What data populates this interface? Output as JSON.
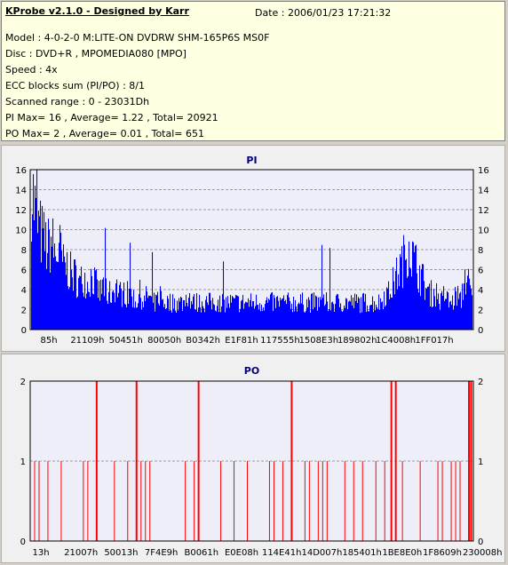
{
  "header": {
    "title": "KProbe v2.1.0 - Designed by Karr",
    "date": "Date : 2006/01/23 17:21:32",
    "lines": [
      "Model : 4-0-2-0 M:LITE-ON DVDRW SHM-165P6S MS0F",
      "Disc : DVD+R , MPOMEDIA080 [MPO]",
      "Speed : 4x",
      "ECC blocks sum (PI/PO) : 8/1",
      "Scanned range : 0 - 23031Dh",
      "PI Max= 16 , Average= 1.22 , Total= 20921",
      "PO Max= 2 , Average= 0.01 , Total= 651"
    ]
  },
  "colors": {
    "panel_bg": "#ffffe1",
    "plot_bg": "#eeeef8",
    "pi_fill": "#0000ff",
    "po_line": "#ff0000",
    "title": "#000080"
  },
  "chart_data": [
    {
      "type": "area",
      "title": "PI",
      "ylim": [
        0,
        16
      ],
      "yticks": [
        0,
        2,
        4,
        6,
        8,
        10,
        12,
        14,
        16
      ],
      "xticks": [
        "85h",
        "21109h",
        "50451h",
        "80050h",
        "B0342h",
        "E1F81h",
        "117555h",
        "1508E3h",
        "189802h",
        "1C4008h",
        "1FF017h"
      ],
      "grid": true,
      "profile": [
        16,
        13,
        11,
        10,
        9,
        10,
        8,
        9,
        7,
        7,
        6,
        6,
        5,
        6,
        5,
        6,
        5,
        4,
        5,
        4,
        4,
        5,
        4,
        4,
        4,
        4,
        3,
        4,
        3,
        4,
        3,
        3,
        4,
        3,
        3,
        3,
        3,
        3,
        3,
        4,
        3,
        3,
        3,
        3,
        3,
        3,
        3,
        3,
        3,
        3,
        3,
        3,
        3,
        3,
        3,
        3,
        3,
        3,
        3,
        3,
        3,
        3,
        3,
        3,
        3,
        3,
        3,
        3,
        3,
        3,
        3,
        3,
        3,
        3,
        3,
        3,
        3,
        3,
        3,
        3,
        3,
        3,
        3,
        3,
        3,
        3,
        3,
        3,
        4,
        4,
        5,
        6,
        7,
        8,
        10,
        8,
        7,
        6,
        5,
        4,
        4,
        4,
        3,
        4,
        3,
        3,
        4,
        3,
        6,
        5,
        3
      ]
    },
    {
      "type": "bar",
      "title": "PO",
      "ylim": [
        0,
        2
      ],
      "yticks": [
        0,
        1,
        2
      ],
      "xticks": [
        "13h",
        "21007h",
        "50013h",
        "7F4E9h",
        "B0061h",
        "E0E08h",
        "114E41h",
        "14D007h",
        "185401h",
        "1BE8E0h",
        "1F8609h",
        "230008h"
      ],
      "grid": true,
      "ones": [
        0.01,
        0.02,
        0.04,
        0.07,
        0.12,
        0.13,
        0.19,
        0.22,
        0.25,
        0.26,
        0.27,
        0.35,
        0.37,
        0.43,
        0.46,
        0.49,
        0.54,
        0.55,
        0.57,
        0.62,
        0.63,
        0.65,
        0.66,
        0.67,
        0.71,
        0.73,
        0.75,
        0.78,
        0.8,
        0.84,
        0.88,
        0.92,
        0.93,
        0.95,
        0.96,
        0.97
      ],
      "twos": [
        0.15,
        0.24,
        0.38,
        0.59,
        0.815,
        0.825,
        0.99,
        0.995
      ]
    }
  ]
}
